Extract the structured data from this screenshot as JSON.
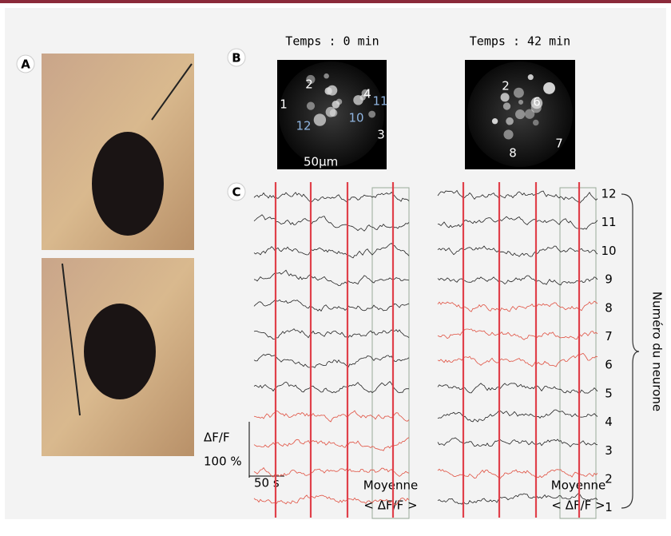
{
  "panels": {
    "a": "A",
    "b": "B",
    "c": "C"
  },
  "images": [
    {
      "title": "Temps : 0 min",
      "labels": [
        "1",
        "2",
        "4",
        "11",
        "12",
        "10",
        "3"
      ],
      "scale": "50µm"
    },
    {
      "title": "Temps : 42 min",
      "labels": [
        "2",
        "6",
        "7",
        "8"
      ]
    }
  ],
  "traces": {
    "neuron_numbers": [
      "12",
      "11",
      "10",
      "9",
      "8",
      "7",
      "6",
      "5",
      "4",
      "3",
      "2",
      "1"
    ],
    "scale_y_label": "ΔF/F",
    "scale_y": "100 %",
    "scale_x": "50 s",
    "mean_label": "Moyenne",
    "mean_formula": "< ΔF/F >",
    "axis_label": "Numéro du neurone"
  }
}
